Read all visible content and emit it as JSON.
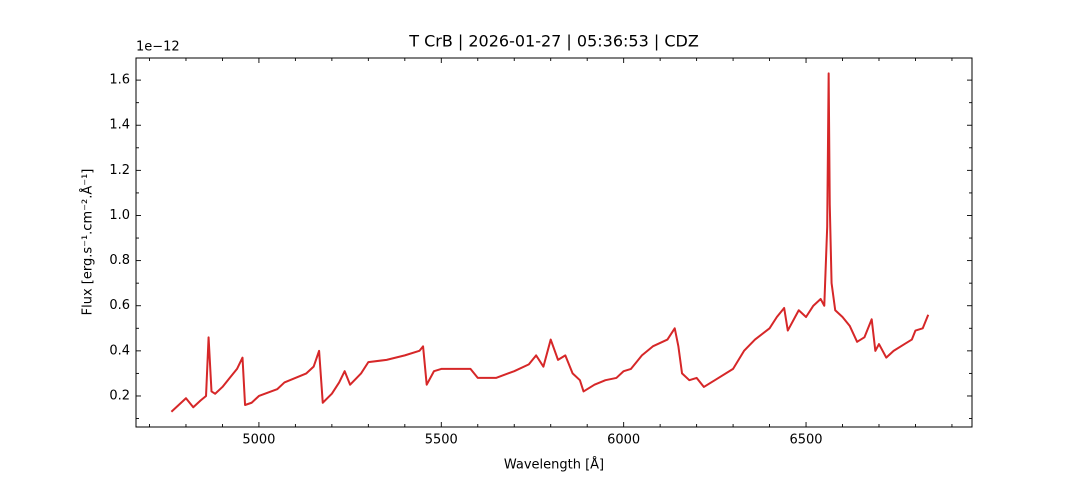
{
  "chart_data": {
    "type": "line",
    "title": "T CrB | 2026-01-27 | 05:36:53 | CDZ",
    "xlabel": "Wavelength [Å]",
    "ylabel": "Flux [erg.s⁻¹.cm⁻².Å⁻¹]",
    "y_offset_label": "1e−12",
    "xlim": [
      4663,
      6955
    ],
    "ylim": [
      0.0625,
      1.698
    ],
    "xticks": [
      5000,
      5500,
      6000,
      6500
    ],
    "yticks": [
      0.2,
      0.4,
      0.6,
      0.8,
      1.0,
      1.2,
      1.4,
      1.6
    ],
    "xminorticks": [
      4700,
      4800,
      4900,
      5100,
      5200,
      5300,
      5400,
      5600,
      5700,
      5800,
      5900,
      6100,
      6200,
      6300,
      6400,
      6600,
      6700,
      6800,
      6900
    ],
    "yminorticks": [
      0.1,
      0.3,
      0.5,
      0.7,
      0.9,
      1.1,
      1.3,
      1.5
    ],
    "grid": false,
    "series": [
      {
        "color": "#d62728",
        "x": [
          4760,
          4780,
          4800,
          4820,
          4840,
          4855,
          4862,
          4870,
          4880,
          4900,
          4920,
          4940,
          4955,
          4962,
          4980,
          5000,
          5050,
          5070,
          5100,
          5130,
          5150,
          5165,
          5175,
          5200,
          5220,
          5235,
          5250,
          5280,
          5300,
          5350,
          5400,
          5440,
          5450,
          5460,
          5480,
          5500,
          5550,
          5580,
          5600,
          5650,
          5700,
          5740,
          5760,
          5780,
          5800,
          5820,
          5840,
          5860,
          5880,
          5890,
          5920,
          5950,
          5980,
          6000,
          6020,
          6050,
          6080,
          6120,
          6140,
          6150,
          6160,
          6180,
          6200,
          6220,
          6250,
          6300,
          6330,
          6360,
          6400,
          6420,
          6440,
          6450,
          6470,
          6480,
          6500,
          6520,
          6540,
          6550,
          6558,
          6562,
          6565,
          6570,
          6580,
          6600,
          6620,
          6640,
          6660,
          6680,
          6690,
          6700,
          6720,
          6740,
          6770,
          6790,
          6800,
          6820,
          6835
        ],
        "values": [
          0.13,
          0.16,
          0.19,
          0.15,
          0.18,
          0.2,
          0.46,
          0.22,
          0.21,
          0.24,
          0.28,
          0.32,
          0.37,
          0.16,
          0.17,
          0.2,
          0.23,
          0.26,
          0.28,
          0.3,
          0.33,
          0.4,
          0.17,
          0.21,
          0.26,
          0.31,
          0.25,
          0.3,
          0.35,
          0.36,
          0.38,
          0.4,
          0.42,
          0.25,
          0.31,
          0.32,
          0.32,
          0.32,
          0.28,
          0.28,
          0.31,
          0.34,
          0.38,
          0.33,
          0.45,
          0.36,
          0.38,
          0.3,
          0.27,
          0.22,
          0.25,
          0.27,
          0.28,
          0.31,
          0.32,
          0.38,
          0.42,
          0.45,
          0.5,
          0.42,
          0.3,
          0.27,
          0.28,
          0.24,
          0.27,
          0.32,
          0.4,
          0.45,
          0.5,
          0.55,
          0.59,
          0.49,
          0.55,
          0.58,
          0.55,
          0.6,
          0.63,
          0.6,
          0.95,
          1.63,
          1.05,
          0.7,
          0.58,
          0.55,
          0.51,
          0.44,
          0.46,
          0.54,
          0.4,
          0.43,
          0.37,
          0.4,
          0.43,
          0.45,
          0.49,
          0.5,
          0.56
        ]
      }
    ]
  }
}
